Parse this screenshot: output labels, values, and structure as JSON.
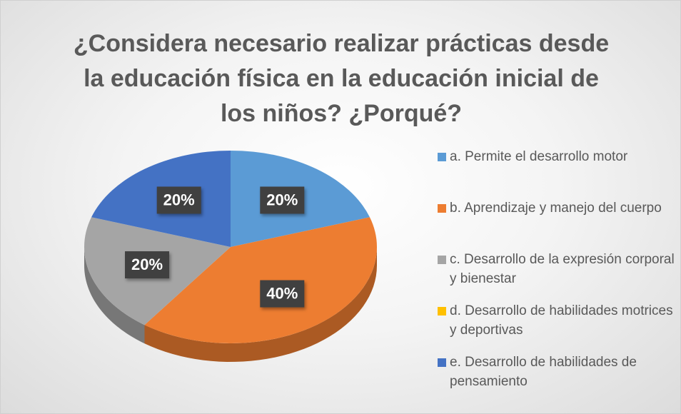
{
  "chart_data": {
    "type": "pie",
    "title": "¿Considera necesario realizar prácticas desde la educación física en la educación inicial de los niños? ¿Porqué?",
    "categories": [
      "a. Permite el desarrollo motor",
      "b. Aprendizaje y manejo del cuerpo",
      "c. Desarrollo de la expresión corporal y bienestar",
      "d. Desarrollo de habilidades motrices y deportivas",
      "e. Desarrollo de habilidades de pensamiento"
    ],
    "values": [
      20,
      40,
      20,
      0,
      20
    ],
    "value_labels": [
      "20%",
      "40%",
      "20%",
      null,
      "20%"
    ],
    "colors": [
      "#5b9bd5",
      "#ed7d31",
      "#a5a5a5",
      "#ffc000",
      "#4472c4"
    ],
    "legend": "right"
  }
}
